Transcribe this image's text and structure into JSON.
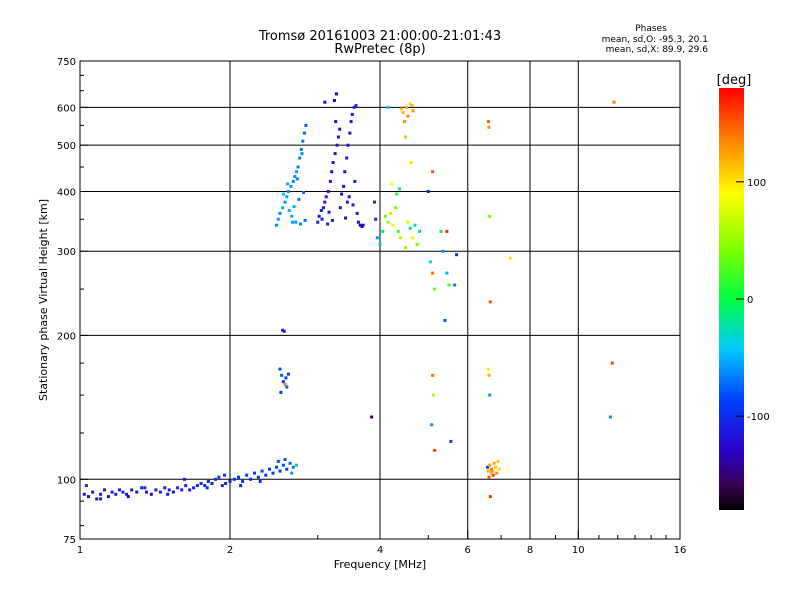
{
  "chart_data": {
    "type": "scatter",
    "title": "Tromsø 20161003 21:00:00-21:01:43",
    "subtitle": "RwPretec (8p)",
    "phases": {
      "title": "Phases",
      "line_o": "mean, sd,O: -95.3, 20.1",
      "line_x": "mean, sd,X:  89.9, 29.6"
    },
    "xlabel": "Frequency [MHz]",
    "ylabel": "Stationary phase Virtual Height [km]",
    "x_scale": "log",
    "y_scale": "log",
    "xlim": [
      1,
      16
    ],
    "ylim": [
      75,
      750
    ],
    "x_ticks": [
      1,
      2,
      4,
      6,
      8,
      10,
      16
    ],
    "x_tick_labels": [
      "1",
      "2",
      "4",
      "6",
      "8",
      "10",
      "16"
    ],
    "x_grid": [
      2,
      4,
      6,
      8,
      10
    ],
    "y_ticks": [
      75,
      100,
      200,
      300,
      400,
      500,
      600,
      750
    ],
    "y_tick_labels": [
      "75",
      "100",
      "200",
      "300",
      "400",
      "500",
      "600",
      "750"
    ],
    "y_grid": [
      100,
      200,
      300,
      400,
      500,
      600
    ],
    "grid": true,
    "colorbar": {
      "label": "[deg]",
      "range": [
        -180,
        180
      ],
      "ticks": [
        100,
        0,
        -100
      ],
      "tick_labels": [
        "100",
        "0",
        "-100"
      ],
      "placement": "right"
    },
    "series": [
      {
        "points": [
          [
            1.02,
            93,
            -115
          ],
          [
            1.04,
            92,
            -120
          ],
          [
            1.06,
            94,
            -110
          ],
          [
            1.08,
            91,
            -118
          ],
          [
            1.1,
            93,
            -112
          ],
          [
            1.12,
            95,
            -105
          ],
          [
            1.14,
            92,
            -120
          ],
          [
            1.16,
            94,
            -110
          ],
          [
            1.18,
            93,
            -115
          ],
          [
            1.2,
            95,
            -108
          ],
          [
            1.22,
            94,
            -112
          ],
          [
            1.24,
            93,
            -118
          ],
          [
            1.27,
            95,
            -110
          ],
          [
            1.3,
            94,
            -115
          ],
          [
            1.33,
            96,
            -105
          ],
          [
            1.36,
            94,
            -112
          ],
          [
            1.39,
            93,
            -118
          ],
          [
            1.42,
            95,
            -110
          ],
          [
            1.45,
            94,
            -114
          ],
          [
            1.48,
            96,
            -108
          ],
          [
            1.51,
            95,
            -112
          ],
          [
            1.54,
            94,
            -116
          ],
          [
            1.57,
            96,
            -106
          ],
          [
            1.6,
            95,
            -110
          ],
          [
            1.63,
            97,
            -104
          ],
          [
            1.66,
            95,
            -112
          ],
          [
            1.69,
            96,
            -108
          ],
          [
            1.72,
            97,
            -105
          ],
          [
            1.75,
            98,
            -100
          ],
          [
            1.78,
            97,
            -108
          ],
          [
            1.81,
            99,
            -102
          ],
          [
            1.84,
            98,
            -106
          ],
          [
            1.87,
            100,
            -98
          ],
          [
            1.9,
            101,
            -95
          ],
          [
            1.93,
            97,
            -110
          ],
          [
            1.96,
            98,
            -105
          ],
          [
            2.0,
            99,
            -100
          ],
          [
            2.04,
            100,
            -98
          ],
          [
            2.08,
            101,
            -95
          ],
          [
            2.12,
            99,
            -102
          ],
          [
            2.16,
            102,
            -94
          ],
          [
            2.2,
            100,
            -100
          ],
          [
            2.24,
            103,
            -92
          ],
          [
            2.28,
            101,
            -98
          ],
          [
            2.32,
            104,
            -90
          ],
          [
            2.36,
            102,
            -95
          ],
          [
            2.4,
            105,
            -88
          ],
          [
            2.44,
            103,
            -94
          ],
          [
            2.48,
            106,
            -85
          ],
          [
            2.52,
            104,
            -92
          ],
          [
            2.56,
            107,
            -80
          ],
          [
            2.6,
            105,
            -88
          ],
          [
            2.64,
            108,
            -75
          ],
          [
            2.68,
            106,
            -70
          ],
          [
            2.72,
            107,
            -40
          ],
          [
            1.03,
            97,
            -110
          ],
          [
            1.1,
            91,
            -105
          ],
          [
            1.25,
            92,
            -120
          ],
          [
            1.35,
            96,
            -100
          ],
          [
            1.5,
            93,
            -118
          ],
          [
            1.62,
            100,
            -108
          ],
          [
            1.8,
            96,
            -95
          ],
          [
            1.95,
            102,
            -90
          ],
          [
            2.1,
            97,
            -104
          ],
          [
            2.3,
            99,
            -96
          ],
          [
            2.5,
            109,
            -82
          ],
          [
            2.58,
            110,
            -78
          ],
          [
            2.66,
            103,
            -60
          ],
          [
            2.55,
            205,
            -100
          ],
          [
            2.57,
            204,
            -105
          ],
          [
            2.52,
            170,
            -85
          ],
          [
            2.54,
            165,
            -80
          ],
          [
            2.56,
            160,
            -95
          ],
          [
            2.58,
            158,
            135
          ],
          [
            2.59,
            163,
            -90
          ],
          [
            2.6,
            156,
            -75
          ],
          [
            2.53,
            152,
            -88
          ],
          [
            2.62,
            166,
            -98
          ],
          [
            2.48,
            340,
            -60
          ],
          [
            2.5,
            350,
            -55
          ],
          [
            2.52,
            360,
            -65
          ],
          [
            2.55,
            370,
            -50
          ],
          [
            2.58,
            380,
            -60
          ],
          [
            2.6,
            390,
            -55
          ],
          [
            2.62,
            400,
            -62
          ],
          [
            2.65,
            410,
            -58
          ],
          [
            2.68,
            420,
            -65
          ],
          [
            2.7,
            430,
            -60
          ],
          [
            2.72,
            440,
            -55
          ],
          [
            2.74,
            450,
            -70
          ],
          [
            2.76,
            470,
            -65
          ],
          [
            2.78,
            490,
            -68
          ],
          [
            2.8,
            510,
            -72
          ],
          [
            2.82,
            530,
            -75
          ],
          [
            2.84,
            550,
            -78
          ],
          [
            2.79,
            480,
            -60
          ],
          [
            2.66,
            355,
            -50
          ],
          [
            2.71,
            345,
            -58
          ],
          [
            2.77,
            342,
            -62
          ],
          [
            2.83,
            348,
            -70
          ],
          [
            2.63,
            365,
            -48
          ],
          [
            2.69,
            372,
            -52
          ],
          [
            2.75,
            385,
            -66
          ],
          [
            2.81,
            398,
            -74
          ],
          [
            2.56,
            395,
            -45
          ],
          [
            2.61,
            415,
            -52
          ],
          [
            2.73,
            425,
            -64
          ],
          [
            2.67,
            345,
            -56
          ],
          [
            3.0,
            345,
            -110
          ],
          [
            3.02,
            355,
            -112
          ],
          [
            3.05,
            365,
            -108
          ],
          [
            3.08,
            370,
            -115
          ],
          [
            3.1,
            380,
            -110
          ],
          [
            3.12,
            390,
            -118
          ],
          [
            3.15,
            400,
            -112
          ],
          [
            3.18,
            420,
            -115
          ],
          [
            3.2,
            440,
            -120
          ],
          [
            3.22,
            460,
            -118
          ],
          [
            3.25,
            480,
            -122
          ],
          [
            3.28,
            500,
            -120
          ],
          [
            3.3,
            520,
            -125
          ],
          [
            3.32,
            540,
            -122
          ],
          [
            3.26,
            560,
            -120
          ],
          [
            3.24,
            620,
            -130
          ],
          [
            3.1,
            615,
            -128
          ],
          [
            3.27,
            640,
            -135
          ],
          [
            3.06,
            350,
            -110
          ],
          [
            3.14,
            342,
            -106
          ],
          [
            3.21,
            348,
            -112
          ],
          [
            3.16,
            362,
            -114
          ],
          [
            3.33,
            370,
            -116
          ],
          [
            3.35,
            395,
            -118
          ],
          [
            3.38,
            410,
            -120
          ],
          [
            3.4,
            440,
            -122
          ],
          [
            3.43,
            470,
            -125
          ],
          [
            3.45,
            500,
            -120
          ],
          [
            3.48,
            530,
            -118
          ],
          [
            3.5,
            560,
            -115
          ],
          [
            3.52,
            580,
            -112
          ],
          [
            3.55,
            600,
            -110
          ],
          [
            3.58,
            605,
            -105
          ],
          [
            3.47,
            390,
            -116
          ],
          [
            3.53,
            375,
            -112
          ],
          [
            3.6,
            360,
            -108
          ],
          [
            3.62,
            345,
            -120
          ],
          [
            3.65,
            340,
            -130
          ],
          [
            3.68,
            338,
            -125
          ],
          [
            3.41,
            352,
            -118
          ],
          [
            3.56,
            420,
            -110
          ],
          [
            3.44,
            380,
            -114
          ],
          [
            3.7,
            340,
            -128
          ],
          [
            3.9,
            380,
            -100
          ],
          [
            3.92,
            350,
            -90
          ],
          [
            3.95,
            320,
            -60
          ],
          [
            4.0,
            310,
            -40
          ],
          [
            4.05,
            330,
            -20
          ],
          [
            4.1,
            355,
            30
          ],
          [
            4.15,
            345,
            50
          ],
          [
            4.2,
            360,
            70
          ],
          [
            4.25,
            340,
            80
          ],
          [
            4.3,
            370,
            40
          ],
          [
            4.35,
            330,
            20
          ],
          [
            4.4,
            320,
            60
          ],
          [
            4.5,
            305,
            50
          ],
          [
            4.55,
            345,
            80
          ],
          [
            4.6,
            335,
            -10
          ],
          [
            4.65,
            320,
            75
          ],
          [
            4.7,
            340,
            -15
          ],
          [
            4.75,
            310,
            40
          ],
          [
            4.8,
            330,
            -20
          ],
          [
            3.85,
            135,
            -160
          ],
          [
            4.42,
            595,
            110
          ],
          [
            4.45,
            585,
            120
          ],
          [
            4.48,
            560,
            130
          ],
          [
            4.5,
            520,
            115
          ],
          [
            4.52,
            600,
            125
          ],
          [
            4.55,
            575,
            135
          ],
          [
            4.6,
            610,
            105
          ],
          [
            4.62,
            460,
            100
          ],
          [
            4.64,
            605,
            120
          ],
          [
            4.66,
            590,
            130
          ],
          [
            4.15,
            600,
            -40
          ],
          [
            4.32,
            395,
            10
          ],
          [
            4.38,
            405,
            -20
          ],
          [
            4.22,
            415,
            90
          ],
          [
            5.05,
            285,
            -30
          ],
          [
            5.1,
            270,
            140
          ],
          [
            5.1,
            440,
            150
          ],
          [
            5.0,
            400,
            -100
          ],
          [
            5.15,
            250,
            40
          ],
          [
            5.1,
            165,
            140
          ],
          [
            5.12,
            150,
            60
          ],
          [
            5.08,
            130,
            -60
          ],
          [
            5.15,
            115,
            160
          ],
          [
            5.3,
            330,
            -20
          ],
          [
            5.35,
            300,
            -60
          ],
          [
            5.45,
            270,
            -50
          ],
          [
            5.5,
            255,
            20
          ],
          [
            5.4,
            215,
            -80
          ],
          [
            5.45,
            330,
            165
          ],
          [
            5.55,
            120,
            -90
          ],
          [
            5.7,
            295,
            -100
          ],
          [
            5.65,
            255,
            -70
          ],
          [
            6.6,
            560,
            150
          ],
          [
            6.62,
            545,
            130
          ],
          [
            6.64,
            355,
            40
          ],
          [
            6.66,
            235,
            150
          ],
          [
            6.6,
            170,
            100
          ],
          [
            6.62,
            165,
            120
          ],
          [
            6.64,
            150,
            -60
          ],
          [
            6.58,
            106,
            -100
          ],
          [
            6.6,
            104,
            120
          ],
          [
            6.62,
            101,
            150
          ],
          [
            6.64,
            107,
            125
          ],
          [
            6.68,
            103,
            110
          ],
          [
            6.7,
            105,
            140
          ],
          [
            6.72,
            104,
            130
          ],
          [
            6.75,
            102,
            155
          ],
          [
            6.78,
            108,
            120
          ],
          [
            6.82,
            106,
            110
          ],
          [
            6.86,
            103,
            135
          ],
          [
            6.9,
            109,
            110
          ],
          [
            6.94,
            105,
            100
          ],
          [
            6.66,
            92,
            160
          ],
          [
            7.3,
            290,
            100
          ],
          [
            11.8,
            615,
            140
          ],
          [
            11.7,
            175,
            150
          ],
          [
            11.6,
            135,
            -60
          ]
        ]
      }
    ]
  }
}
